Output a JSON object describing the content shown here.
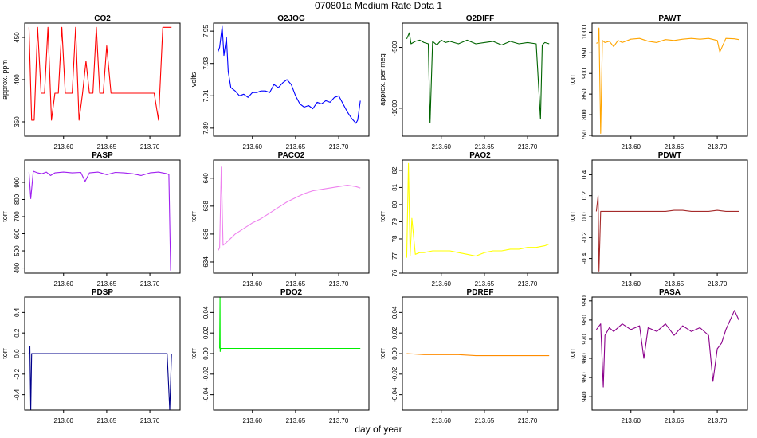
{
  "figure": {
    "title": "070801a   Medium Rate Data 1",
    "xlabel": "day of year"
  },
  "chart_data": [
    {
      "type": "line",
      "title": "CO2",
      "ylabel": "approx. ppm",
      "color": "#ff0000",
      "xlim": [
        213.555,
        213.735
      ],
      "ylim": [
        333,
        467
      ],
      "xticks": [
        "213.60",
        "213.65",
        "213.70"
      ],
      "yticks": [
        "350",
        "400",
        "450"
      ],
      "x": [
        213.56,
        213.563,
        213.566,
        213.57,
        213.574,
        213.578,
        213.582,
        213.586,
        213.59,
        213.594,
        213.598,
        213.602,
        213.606,
        213.61,
        213.614,
        213.618,
        213.622,
        213.626,
        213.63,
        213.634,
        213.638,
        213.642,
        213.646,
        213.65,
        213.655,
        213.66,
        213.665,
        213.67,
        213.675,
        213.68,
        213.685,
        213.69,
        213.695,
        213.7,
        213.705,
        213.71,
        213.715,
        213.72,
        213.725
      ],
      "y": [
        462,
        352,
        352,
        462,
        384,
        384,
        462,
        352,
        384,
        384,
        462,
        384,
        384,
        384,
        462,
        352,
        384,
        422,
        384,
        384,
        462,
        384,
        384,
        440,
        384,
        384,
        384,
        384,
        384,
        384,
        384,
        384,
        384,
        384,
        384,
        352,
        462,
        462,
        462
      ]
    },
    {
      "type": "line",
      "title": "O2JOG",
      "ylabel": "volts",
      "color": "#0000ff",
      "xlim": [
        213.555,
        213.735
      ],
      "ylim": [
        7.885,
        7.955
      ],
      "xticks": [
        "213.60",
        "213.65",
        "213.70"
      ],
      "yticks": [
        "7.89",
        "7.91",
        "7.93",
        "7.95"
      ],
      "x": [
        213.56,
        213.562,
        213.565,
        213.567,
        213.57,
        213.572,
        213.575,
        213.58,
        213.585,
        213.59,
        213.595,
        213.6,
        213.605,
        213.61,
        213.615,
        213.62,
        213.625,
        213.63,
        213.635,
        213.64,
        213.645,
        213.65,
        213.655,
        213.66,
        213.665,
        213.67,
        213.675,
        213.68,
        213.685,
        213.69,
        213.695,
        213.7,
        213.705,
        213.71,
        213.715,
        213.72,
        213.722,
        213.725
      ],
      "y": [
        7.937,
        7.94,
        7.953,
        7.935,
        7.946,
        7.925,
        7.915,
        7.913,
        7.91,
        7.911,
        7.909,
        7.912,
        7.912,
        7.913,
        7.913,
        7.912,
        7.917,
        7.915,
        7.918,
        7.92,
        7.917,
        7.91,
        7.905,
        7.903,
        7.904,
        7.902,
        7.906,
        7.905,
        7.907,
        7.906,
        7.909,
        7.91,
        7.905,
        7.9,
        7.896,
        7.893,
        7.895,
        7.907
      ]
    },
    {
      "type": "line",
      "title": "O2DIFF",
      "ylabel": "approx. per meg",
      "color": "#006400",
      "xlim": [
        213.555,
        213.735
      ],
      "ylim": [
        -1230,
        -300
      ],
      "xticks": [
        "213.60",
        "213.65",
        "213.70"
      ],
      "yticks": [
        "-1000",
        "-500"
      ],
      "x": [
        213.56,
        213.563,
        213.565,
        213.57,
        213.575,
        213.58,
        213.585,
        213.587,
        213.59,
        213.595,
        213.6,
        213.605,
        213.61,
        213.62,
        213.63,
        213.64,
        213.65,
        213.66,
        213.67,
        213.68,
        213.69,
        213.7,
        213.71,
        213.715,
        213.717,
        213.72,
        213.725
      ],
      "y": [
        -430,
        -380,
        -470,
        -450,
        -440,
        -460,
        -470,
        -1120,
        -450,
        -480,
        -440,
        -460,
        -450,
        -470,
        -440,
        -470,
        -460,
        -450,
        -480,
        -450,
        -470,
        -460,
        -470,
        -1090,
        -480,
        -460,
        -470
      ]
    },
    {
      "type": "line",
      "title": "PAWT",
      "ylabel": "torr",
      "color": "#ffa500",
      "xlim": [
        213.555,
        213.735
      ],
      "ylim": [
        748,
        1022
      ],
      "xticks": [
        "213.60",
        "213.65",
        "213.70"
      ],
      "yticks": [
        "750",
        "800",
        "850",
        "900",
        "950",
        "1000"
      ],
      "x": [
        213.56,
        213.562,
        213.563,
        213.565,
        213.567,
        213.57,
        213.575,
        213.58,
        213.585,
        213.59,
        213.6,
        213.61,
        213.62,
        213.63,
        213.64,
        213.65,
        213.66,
        213.67,
        213.68,
        213.69,
        213.7,
        213.703,
        213.71,
        213.72,
        213.725
      ],
      "y": [
        973,
        975,
        1010,
        755,
        980,
        975,
        978,
        965,
        980,
        975,
        983,
        985,
        978,
        975,
        982,
        980,
        983,
        985,
        983,
        985,
        980,
        952,
        985,
        984,
        982
      ]
    },
    {
      "type": "line",
      "title": "PASP",
      "ylabel": "torr",
      "color": "#a020f0",
      "xlim": [
        213.555,
        213.735
      ],
      "ylim": [
        370,
        1030
      ],
      "xticks": [
        "213.60",
        "213.65",
        "213.70"
      ],
      "yticks": [
        "400",
        "500",
        "600",
        "700",
        "800",
        "900"
      ],
      "x": [
        213.56,
        213.562,
        213.565,
        213.57,
        213.575,
        213.58,
        213.585,
        213.59,
        213.6,
        213.61,
        213.62,
        213.625,
        213.63,
        213.64,
        213.65,
        213.66,
        213.67,
        213.68,
        213.69,
        213.7,
        213.71,
        213.72,
        213.722,
        213.724
      ],
      "y": [
        960,
        805,
        965,
        955,
        950,
        960,
        940,
        955,
        960,
        955,
        958,
        905,
        955,
        960,
        945,
        958,
        955,
        950,
        940,
        955,
        960,
        950,
        945,
        385
      ]
    },
    {
      "type": "line",
      "title": "PACO2",
      "ylabel": "torr",
      "color": "#ee82ee",
      "xlim": [
        213.555,
        213.735
      ],
      "ylim": [
        633.2,
        641.3
      ],
      "xticks": [
        "213.60",
        "213.65",
        "213.70"
      ],
      "yticks": [
        "634",
        "636",
        "638",
        "640"
      ],
      "x": [
        213.56,
        213.562,
        213.564,
        213.566,
        213.57,
        213.575,
        213.58,
        213.59,
        213.6,
        213.61,
        213.62,
        213.63,
        213.64,
        213.65,
        213.66,
        213.67,
        213.68,
        213.69,
        213.7,
        213.71,
        213.72,
        213.725
      ],
      "y": [
        634.8,
        635.0,
        640.8,
        635.2,
        635.4,
        635.7,
        636.0,
        636.4,
        636.8,
        637.1,
        637.5,
        637.9,
        638.3,
        638.6,
        638.9,
        639.1,
        639.2,
        639.3,
        639.4,
        639.5,
        639.4,
        639.3
      ]
    },
    {
      "type": "line",
      "title": "PAO2",
      "ylabel": "torr",
      "color": "#ffff00",
      "xlim": [
        213.555,
        213.735
      ],
      "ylim": [
        76,
        82.6
      ],
      "xticks": [
        "213.60",
        "213.65",
        "213.70"
      ],
      "yticks": [
        "76",
        "77",
        "78",
        "79",
        "80",
        "81",
        "82"
      ],
      "x": [
        213.56,
        213.562,
        213.564,
        213.566,
        213.57,
        213.575,
        213.58,
        213.59,
        213.6,
        213.61,
        213.62,
        213.63,
        213.64,
        213.65,
        213.66,
        213.67,
        213.68,
        213.69,
        213.7,
        213.71,
        213.72,
        213.725
      ],
      "y": [
        76.9,
        82.4,
        77.0,
        79.2,
        77.1,
        77.2,
        77.2,
        77.3,
        77.3,
        77.3,
        77.2,
        77.1,
        77.0,
        77.2,
        77.3,
        77.3,
        77.4,
        77.4,
        77.5,
        77.5,
        77.6,
        77.7
      ]
    },
    {
      "type": "line",
      "title": "PDWT",
      "ylabel": "torr",
      "color": "#a52a2a",
      "xlim": [
        213.555,
        213.735
      ],
      "ylim": [
        -0.54,
        0.54
      ],
      "xticks": [
        "213.60",
        "213.65",
        "213.70"
      ],
      "yticks": [
        "-0.4",
        "-0.2",
        "0.0",
        "0.2",
        "0.4"
      ],
      "x": [
        213.56,
        213.562,
        213.563,
        213.565,
        213.57,
        213.58,
        213.59,
        213.6,
        213.61,
        213.62,
        213.63,
        213.64,
        213.65,
        213.66,
        213.67,
        213.68,
        213.69,
        213.7,
        213.71,
        213.72,
        213.725
      ],
      "y": [
        0.05,
        0.2,
        -0.52,
        0.05,
        0.05,
        0.05,
        0.05,
        0.05,
        0.05,
        0.05,
        0.05,
        0.05,
        0.06,
        0.06,
        0.05,
        0.05,
        0.05,
        0.06,
        0.05,
        0.05,
        0.05
      ]
    },
    {
      "type": "line",
      "title": "PDSP",
      "ylabel": "torr",
      "color": "#00008b",
      "xlim": [
        213.555,
        213.735
      ],
      "ylim": [
        -0.55,
        0.55
      ],
      "xticks": [
        "213.60",
        "213.65",
        "213.70"
      ],
      "yticks": [
        "-0.4",
        "-0.2",
        "0.0",
        "0.2",
        "0.4"
      ],
      "x": [
        213.56,
        213.561,
        213.562,
        213.563,
        213.57,
        213.58,
        213.6,
        213.62,
        213.64,
        213.66,
        213.68,
        213.7,
        213.72,
        213.723,
        213.725
      ],
      "y": [
        0.0,
        0.07,
        -0.55,
        0.0,
        0.0,
        0.0,
        0.0,
        0.0,
        0.0,
        0.0,
        0.0,
        0.0,
        0.0,
        -0.55,
        0.0
      ]
    },
    {
      "type": "line",
      "title": "PDO2",
      "ylabel": "torr",
      "color": "#00ee00",
      "xlim": [
        213.555,
        213.735
      ],
      "ylim": [
        -0.055,
        0.055
      ],
      "xticks": [
        "213.60",
        "213.65",
        "213.70"
      ],
      "yticks": [
        "-0.04",
        "-0.02",
        "0.00",
        "0.02",
        "0.04"
      ],
      "x": [
        213.562,
        213.5625,
        213.5627,
        213.563,
        213.57,
        213.6,
        213.63,
        213.66,
        213.69,
        213.72,
        213.725
      ],
      "y": [
        0.005,
        0.055,
        0.002,
        0.005,
        0.005,
        0.005,
        0.005,
        0.005,
        0.005,
        0.005,
        0.005
      ]
    },
    {
      "type": "line",
      "title": "PDREF",
      "ylabel": "torr",
      "color": "#ff8c00",
      "xlim": [
        213.555,
        213.735
      ],
      "ylim": [
        -0.055,
        0.055
      ],
      "xticks": [
        "213.60",
        "213.65",
        "213.70"
      ],
      "yticks": [
        "-0.04",
        "-0.02",
        "0.00",
        "0.02",
        "0.04"
      ],
      "x": [
        213.56,
        213.58,
        213.6,
        213.62,
        213.64,
        213.66,
        213.68,
        213.7,
        213.72,
        213.725
      ],
      "y": [
        0.0,
        -0.001,
        -0.001,
        -0.001,
        -0.002,
        -0.002,
        -0.002,
        -0.002,
        -0.002,
        -0.002
      ]
    },
    {
      "type": "line",
      "title": "PASA",
      "ylabel": "torr",
      "color": "#8b008b",
      "xlim": [
        213.555,
        213.735
      ],
      "ylim": [
        933,
        992
      ],
      "xticks": [
        "213.60",
        "213.65",
        "213.70"
      ],
      "yticks": [
        "940",
        "950",
        "960",
        "970",
        "980",
        "990"
      ],
      "x": [
        213.56,
        213.565,
        213.568,
        213.57,
        213.575,
        213.58,
        213.59,
        213.6,
        213.61,
        213.615,
        213.62,
        213.63,
        213.64,
        213.65,
        213.66,
        213.67,
        213.68,
        213.69,
        213.695,
        213.7,
        213.705,
        213.71,
        213.72,
        213.725
      ],
      "y": [
        975,
        978,
        945,
        972,
        976,
        974,
        978,
        975,
        977,
        960,
        976,
        974,
        978,
        972,
        977,
        974,
        976,
        972,
        948,
        965,
        968,
        975,
        985,
        980
      ]
    }
  ]
}
